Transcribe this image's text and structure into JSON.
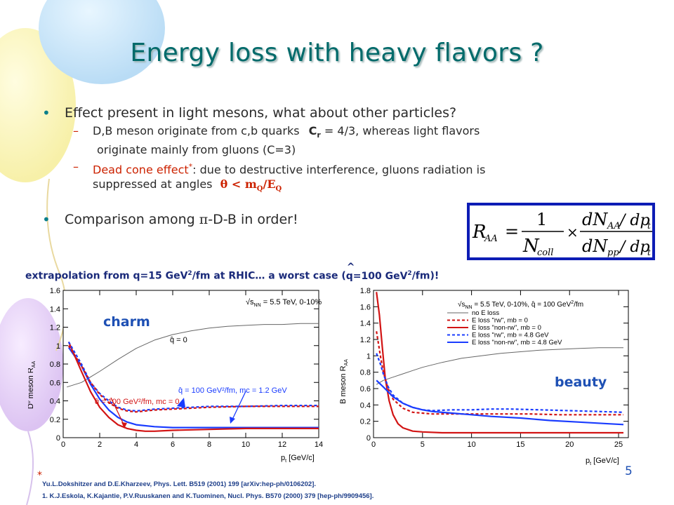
{
  "title": "Energy loss with heavy flavors ?",
  "bullets": {
    "b1": "Effect present in light mesons, what about other particles?",
    "b1a_pre": "D,B meson originate from c,b quarks",
    "b1a_c": "C",
    "b1a_r": "r",
    "b1a_post": "= 4/3, whereas light flavors",
    "b1a_cont": "originate mainly from gluons (C=3)",
    "b1b_red": "Dead cone effect",
    "b1b_star": "*",
    "b1b_post": ": due to destructive interference, gluons radiation is",
    "b1b_cont": "suppressed at angles",
    "b1b_theta": "θ < m",
    "b1b_Q1": "Q",
    "b1b_slash": "/E",
    "b1b_Q2": "Q",
    "b2_pre": "Comparison among",
    "b2_pi": "π",
    "b2_post": "-D-B in order!"
  },
  "formula": {
    "lhs": "R",
    "lhs_sub": "AA",
    "eq": "=",
    "num1": "1",
    "den1": "N",
    "den1_sub": "coll",
    "times": "×",
    "num2": "dN",
    "num2_sub": "AA",
    "num2_post": "/ dp",
    "num2_t": "t",
    "den2": "dN",
    "den2_sub": "pp",
    "den2_post": "/ dp",
    "den2_t": "t"
  },
  "extrapolation": {
    "a": "extrapolation from q=15 GeV",
    "sup1": "2",
    "b": "/fm at RHIC… a worst case (",
    "hat": "^",
    "c": "q=100 GeV",
    "sup2": "2",
    "d": "/fm)!"
  },
  "labels": {
    "charm": "charm",
    "beauty": "beauty",
    "page": "5"
  },
  "refs": {
    "star": "*",
    "r1": "Yu.L.Dokshitzer and D.E.Kharzeev, Phys. Lett. B519 (2001) 199 [arXiv:hep-ph/0106202].",
    "r2": "1. K.J.Eskola, K.Kajantie, P.V.Ruuskanen and K.Tuominen, Nucl. Phys. B570 (2000) 379 [hep-ph/9909456]."
  },
  "chart_data": [
    {
      "type": "line",
      "ylabel": "D0 meson RAA",
      "ylabel_main": "D",
      "ylabel_sup": "0",
      "ylabel_mid": " meson R",
      "ylabel_sub": "AA",
      "xlabel": "pt [GeV/c]",
      "xlabel_main": "p",
      "xlabel_sub": "t",
      "xlabel_post": " [GeV/c]",
      "xlim": [
        0,
        14
      ],
      "ylim": [
        0,
        1.6
      ],
      "xticks": [
        "0",
        "2",
        "4",
        "6",
        "8",
        "10",
        "12",
        "14"
      ],
      "yticks": [
        "0",
        "0.2",
        "0.4",
        "0.6",
        "0.8",
        "1",
        "1.2",
        "1.4",
        "1.6"
      ],
      "header": "√sNN = 5.5 TeV, 0-10%",
      "header_sqrt": "√",
      "header_s": "s",
      "header_sub": "NN",
      "header_post": " = 5.5 TeV, 0-10%",
      "annotations": [
        {
          "text": "q̂ = 0",
          "x": 5.0,
          "y": 1.07,
          "color": "#000000"
        },
        {
          "text": "q̂ = 100 GeV²/fm, mc = 1.2 GeV",
          "x": 6.5,
          "y": 0.58,
          "color": "#1a3cff"
        },
        {
          "text": "q̂ = 100 GeV²/fm, mc = 0",
          "x": 2.8,
          "y": 0.44,
          "color": "#d21414"
        }
      ],
      "series": [
        {
          "color": "#666666",
          "style": "solid",
          "x": [
            0.2,
            1,
            2,
            3,
            4,
            5,
            6,
            7,
            8,
            9,
            10,
            11,
            12,
            13,
            14
          ],
          "values": [
            0.55,
            0.6,
            0.72,
            0.85,
            0.97,
            1.06,
            1.12,
            1.16,
            1.19,
            1.21,
            1.22,
            1.23,
            1.23,
            1.24,
            1.24
          ]
        },
        {
          "color": "#1a3cff",
          "style": "solid",
          "x": [
            0.3,
            1,
            1.5,
            2,
            2.5,
            3,
            3.5,
            4,
            5,
            6,
            7,
            8,
            10,
            12,
            14
          ],
          "values": [
            0.98,
            0.78,
            0.58,
            0.42,
            0.3,
            0.22,
            0.17,
            0.14,
            0.12,
            0.11,
            0.11,
            0.11,
            0.11,
            0.11,
            0.11
          ]
        },
        {
          "color": "#d21414",
          "style": "solid",
          "x": [
            0.3,
            1,
            1.5,
            2,
            2.5,
            3,
            3.5,
            4,
            4.5,
            5,
            6,
            8,
            10,
            12,
            14
          ],
          "values": [
            1.04,
            0.72,
            0.5,
            0.33,
            0.22,
            0.14,
            0.1,
            0.08,
            0.07,
            0.07,
            0.08,
            0.09,
            0.1,
            0.1,
            0.1
          ]
        },
        {
          "color": "#1a3cff",
          "style": "dashed",
          "x": [
            0.3,
            1,
            1.5,
            2,
            2.5,
            3,
            3.5,
            4,
            5,
            6,
            7,
            8,
            10,
            12,
            14
          ],
          "values": [
            1.04,
            0.8,
            0.6,
            0.48,
            0.4,
            0.33,
            0.3,
            0.29,
            0.31,
            0.32,
            0.33,
            0.34,
            0.34,
            0.35,
            0.35
          ]
        },
        {
          "color": "#d21414",
          "style": "dashed",
          "x": [
            0.3,
            1,
            1.5,
            2,
            2.5,
            3,
            3.5,
            4,
            5,
            6,
            7,
            8,
            10,
            12,
            14
          ],
          "values": [
            1.0,
            0.78,
            0.6,
            0.47,
            0.38,
            0.32,
            0.29,
            0.28,
            0.3,
            0.31,
            0.32,
            0.33,
            0.34,
            0.34,
            0.34
          ]
        }
      ]
    },
    {
      "type": "line",
      "ylabel": "B meson RAA",
      "ylabel_main": "B meson R",
      "ylabel_sub": "AA",
      "xlabel": "pt [GeV/c]",
      "xlabel_main": "p",
      "xlabel_sub": "t",
      "xlabel_post": " [GeV/c]",
      "xlim": [
        0,
        26
      ],
      "ylim": [
        0,
        1.8
      ],
      "xticks": [
        "0",
        "5",
        "10",
        "15",
        "20",
        "25"
      ],
      "yticks": [
        "0",
        "0.2",
        "0.4",
        "0.6",
        "0.8",
        "1",
        "1.2",
        "1.4",
        "1.6",
        "1.8"
      ],
      "legend_position": "top-right",
      "legend": {
        "title": "√sNN = 5.5 TeV, 0-10%, q̂ = 100 GeV²/fm",
        "title_sqrt": "√",
        "title_s": "s",
        "title_sub": "NN",
        "title_post": " = 5.5 TeV, 0-10%, q̂ = 100 GeV",
        "title_sup": "2",
        "title_end": "/fm",
        "entries": [
          {
            "label": "no E loss",
            "color": "#666666",
            "style": "solid"
          },
          {
            "label": "E loss \"rw\", mb = 0",
            "color": "#d21414",
            "style": "dashed"
          },
          {
            "label": "E loss \"non-rw\", mb = 0",
            "color": "#d21414",
            "style": "solid"
          },
          {
            "label": "E loss \"rw\", mb = 4.8 GeV",
            "color": "#1a3cff",
            "style": "dashed"
          },
          {
            "label": "E loss \"non-rw\", mb = 4.8 GeV",
            "color": "#1a3cff",
            "style": "solid"
          }
        ]
      },
      "series": [
        {
          "name": "no E loss",
          "color": "#666666",
          "style": "solid",
          "x": [
            0.3,
            1,
            2,
            3,
            4,
            5,
            7,
            9,
            11,
            13,
            15,
            17,
            19,
            21,
            23,
            25.5
          ],
          "values": [
            0.65,
            0.7,
            0.74,
            0.78,
            0.82,
            0.86,
            0.92,
            0.97,
            1.0,
            1.03,
            1.05,
            1.07,
            1.08,
            1.09,
            1.1,
            1.1
          ]
        },
        {
          "name": "E loss \"rw\", mb = 0",
          "color": "#d21414",
          "style": "dashed",
          "x": [
            0.3,
            0.7,
            1,
            1.5,
            2,
            3,
            4,
            5,
            6,
            8,
            10,
            13,
            16,
            19,
            22,
            25.5
          ],
          "values": [
            1.3,
            1.0,
            0.8,
            0.6,
            0.47,
            0.36,
            0.31,
            0.3,
            0.29,
            0.29,
            0.29,
            0.29,
            0.29,
            0.28,
            0.28,
            0.28
          ]
        },
        {
          "name": "E loss \"non-rw\", mb = 0",
          "color": "#d21414",
          "style": "solid",
          "x": [
            0.3,
            0.6,
            0.9,
            1.2,
            1.6,
            2,
            2.5,
            3,
            4,
            5,
            7,
            10,
            15,
            20,
            25.5
          ],
          "values": [
            1.78,
            1.5,
            1.1,
            0.72,
            0.45,
            0.28,
            0.17,
            0.12,
            0.08,
            0.07,
            0.06,
            0.06,
            0.06,
            0.06,
            0.06
          ]
        },
        {
          "name": "E loss \"rw\", mb = 4.8 GeV",
          "color": "#1a3cff",
          "style": "dashed",
          "x": [
            0.3,
            0.7,
            1,
            1.5,
            2,
            3,
            4,
            5,
            6,
            8,
            10,
            12,
            14,
            17,
            20,
            23,
            25.5
          ],
          "values": [
            1.03,
            0.9,
            0.78,
            0.62,
            0.52,
            0.42,
            0.37,
            0.34,
            0.33,
            0.34,
            0.34,
            0.35,
            0.35,
            0.34,
            0.33,
            0.32,
            0.31
          ]
        },
        {
          "name": "E loss \"non-rw\", mb = 4.8 GeV",
          "color": "#1a3cff",
          "style": "solid",
          "x": [
            0.3,
            1,
            2,
            3,
            4,
            5,
            6,
            8,
            10,
            12,
            15,
            18,
            21,
            24,
            25.5
          ],
          "values": [
            0.7,
            0.62,
            0.5,
            0.42,
            0.37,
            0.34,
            0.32,
            0.3,
            0.28,
            0.26,
            0.24,
            0.21,
            0.19,
            0.17,
            0.16
          ]
        }
      ]
    }
  ]
}
